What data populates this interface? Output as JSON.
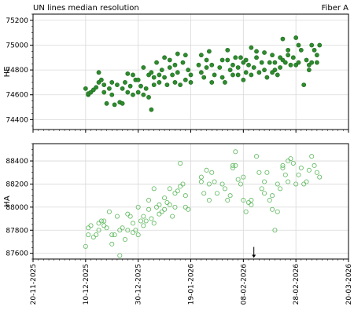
{
  "header": {
    "left_title": "UN lines median resolution",
    "right_title": "Fiber A"
  },
  "colors": {
    "he_fill": "#2e8b2e",
    "he_stroke": "#1f6a1f",
    "ha_stroke": "#5cb85c",
    "grid": "#d9d9d9",
    "axis": "#000000"
  },
  "chart_data": [
    {
      "type": "scatter",
      "ylabel": "HE",
      "ylim": [
        74320,
        75250
      ],
      "yticks": [
        74400,
        74600,
        74800,
        75000,
        75200
      ],
      "marker": "filled-circle",
      "grid": true,
      "x_dates": [
        "2025-11-20",
        "2025-12-10",
        "2025-12-30",
        "2026-01-19",
        "2026-02-08",
        "2026-02-28",
        "2026-03-20"
      ],
      "points": [
        [
          "2025-12-10",
          74650
        ],
        [
          "2025-12-11",
          74600
        ],
        [
          "2025-12-11",
          74610
        ],
        [
          "2025-12-12",
          74620
        ],
        [
          "2025-12-13",
          74640
        ],
        [
          "2025-12-14",
          74660
        ],
        [
          "2025-12-15",
          74700
        ],
        [
          "2025-12-15",
          74780
        ],
        [
          "2025-12-16",
          74720
        ],
        [
          "2025-12-17",
          74620
        ],
        [
          "2025-12-17",
          74680
        ],
        [
          "2025-12-18",
          74530
        ],
        [
          "2025-12-19",
          74650
        ],
        [
          "2025-12-20",
          74700
        ],
        [
          "2025-12-20",
          74600
        ],
        [
          "2025-12-21",
          74520
        ],
        [
          "2025-12-22",
          74680
        ],
        [
          "2025-12-23",
          74540
        ],
        [
          "2025-12-24",
          74530
        ],
        [
          "2025-12-24",
          74650
        ],
        [
          "2025-12-25",
          74700
        ],
        [
          "2025-12-26",
          74770
        ],
        [
          "2025-12-26",
          74620
        ],
        [
          "2025-12-27",
          74670
        ],
        [
          "2025-12-28",
          74760
        ],
        [
          "2025-12-28",
          74600
        ],
        [
          "2025-12-29",
          74720
        ],
        [
          "2025-12-30",
          74720
        ],
        [
          "2025-12-30",
          74620
        ],
        [
          "2025-12-31",
          74670
        ],
        [
          "2026-01-01",
          74820
        ],
        [
          "2026-01-01",
          74600
        ],
        [
          "2026-01-02",
          74650
        ],
        [
          "2026-01-03",
          74760
        ],
        [
          "2026-01-03",
          74580
        ],
        [
          "2026-01-04",
          74480
        ],
        [
          "2026-01-04",
          74780
        ],
        [
          "2026-01-05",
          74740
        ],
        [
          "2026-01-05",
          74680
        ],
        [
          "2026-01-06",
          74860
        ],
        [
          "2026-01-07",
          74760
        ],
        [
          "2026-01-07",
          74700
        ],
        [
          "2026-01-08",
          74800
        ],
        [
          "2026-01-09",
          74900
        ],
        [
          "2026-01-09",
          74740
        ],
        [
          "2026-01-10",
          74680
        ],
        [
          "2026-01-11",
          74820
        ],
        [
          "2026-01-11",
          74880
        ],
        [
          "2026-01-12",
          74760
        ],
        [
          "2026-01-13",
          74700
        ],
        [
          "2026-01-13",
          74840
        ],
        [
          "2026-01-14",
          74930
        ],
        [
          "2026-01-14",
          74780
        ],
        [
          "2026-01-15",
          74680
        ],
        [
          "2026-01-16",
          74860
        ],
        [
          "2026-01-17",
          74720
        ],
        [
          "2026-01-17",
          74920
        ],
        [
          "2026-01-18",
          74800
        ],
        [
          "2026-01-19",
          74760
        ],
        [
          "2026-01-19",
          74700
        ],
        [
          "2026-01-22",
          74840
        ],
        [
          "2026-01-23",
          74920
        ],
        [
          "2026-01-23",
          74780
        ],
        [
          "2026-01-24",
          74740
        ],
        [
          "2026-01-25",
          74880
        ],
        [
          "2026-01-25",
          74820
        ],
        [
          "2026-01-26",
          74950
        ],
        [
          "2026-01-27",
          74700
        ],
        [
          "2026-01-27",
          74840
        ],
        [
          "2026-01-28",
          74760
        ],
        [
          "2026-01-30",
          74820
        ],
        [
          "2026-01-31",
          74880
        ],
        [
          "2026-01-31",
          74740
        ],
        [
          "2026-02-01",
          74700
        ],
        [
          "2026-02-02",
          74880
        ],
        [
          "2026-02-02",
          74960
        ],
        [
          "2026-02-03",
          74800
        ],
        [
          "2026-02-04",
          74760
        ],
        [
          "2026-02-04",
          74840
        ],
        [
          "2026-02-05",
          74900
        ],
        [
          "2026-02-06",
          74760
        ],
        [
          "2026-02-06",
          74820
        ],
        [
          "2026-02-07",
          74900
        ],
        [
          "2026-02-08",
          74720
        ],
        [
          "2026-02-08",
          74860
        ],
        [
          "2026-02-09",
          74780
        ],
        [
          "2026-02-09",
          74880
        ],
        [
          "2026-02-10",
          74840
        ],
        [
          "2026-02-11",
          74760
        ],
        [
          "2026-02-11",
          74980
        ],
        [
          "2026-02-12",
          74820
        ],
        [
          "2026-02-13",
          74950
        ],
        [
          "2026-02-13",
          74900
        ],
        [
          "2026-02-14",
          74780
        ],
        [
          "2026-02-15",
          74860
        ],
        [
          "2026-02-16",
          74940
        ],
        [
          "2026-02-16",
          74800
        ],
        [
          "2026-02-17",
          74740
        ],
        [
          "2026-02-18",
          74860
        ],
        [
          "2026-02-19",
          74920
        ],
        [
          "2026-02-19",
          74780
        ],
        [
          "2026-02-20",
          74800
        ],
        [
          "2026-02-20",
          74860
        ],
        [
          "2026-02-21",
          74760
        ],
        [
          "2026-02-22",
          74900
        ],
        [
          "2026-02-22",
          74820
        ],
        [
          "2026-02-23",
          75050
        ],
        [
          "2026-02-23",
          74880
        ],
        [
          "2026-02-24",
          74860
        ],
        [
          "2026-02-25",
          74920
        ],
        [
          "2026-02-25",
          74960
        ],
        [
          "2026-02-26",
          74840
        ],
        [
          "2026-02-27",
          74900
        ],
        [
          "2026-02-28",
          75060
        ],
        [
          "2026-02-28",
          74840
        ],
        [
          "2026-03-01",
          74860
        ],
        [
          "2026-03-01",
          75000
        ],
        [
          "2026-03-02",
          74960
        ],
        [
          "2026-03-03",
          74680
        ],
        [
          "2026-03-04",
          74880
        ],
        [
          "2026-03-05",
          74800
        ],
        [
          "2026-03-05",
          74840
        ],
        [
          "2026-03-06",
          74860
        ],
        [
          "2026-03-06",
          75000
        ],
        [
          "2026-03-07",
          74960
        ],
        [
          "2026-03-08",
          74920
        ],
        [
          "2026-03-08",
          74860
        ],
        [
          "2026-03-09",
          75000
        ]
      ]
    },
    {
      "type": "scatter",
      "ylabel": "HA",
      "ylim": [
        87550,
        88550
      ],
      "yticks": [
        87600,
        87800,
        88000,
        88200,
        88400
      ],
      "marker": "open-circle",
      "grid": true,
      "x_dates": [
        "2025-11-20",
        "2025-12-10",
        "2025-12-30",
        "2026-01-19",
        "2026-02-08",
        "2026-02-28",
        "2026-03-20"
      ],
      "annotation": {
        "type": "arrow",
        "x": "2026-02-12",
        "y": 87560
      },
      "points": [
        [
          "2025-12-10",
          87660
        ],
        [
          "2025-12-11",
          87820
        ],
        [
          "2025-12-11",
          87760
        ],
        [
          "2025-12-12",
          87840
        ],
        [
          "2025-12-13",
          87740
        ],
        [
          "2025-12-14",
          87760
        ],
        [
          "2025-12-15",
          87860
        ],
        [
          "2025-12-15",
          87800
        ],
        [
          "2025-12-16",
          87880
        ],
        [
          "2025-12-17",
          87840
        ],
        [
          "2025-12-17",
          87880
        ],
        [
          "2025-12-18",
          87820
        ],
        [
          "2025-12-19",
          87960
        ],
        [
          "2025-12-20",
          87760
        ],
        [
          "2025-12-20",
          87680
        ],
        [
          "2025-12-21",
          87760
        ],
        [
          "2025-12-22",
          87920
        ],
        [
          "2025-12-23",
          87800
        ],
        [
          "2025-12-23",
          87580
        ],
        [
          "2025-12-24",
          87820
        ],
        [
          "2025-12-25",
          87720
        ],
        [
          "2025-12-26",
          87800
        ],
        [
          "2025-12-26",
          87940
        ],
        [
          "2025-12-27",
          87920
        ],
        [
          "2025-12-28",
          87780
        ],
        [
          "2025-12-28",
          87860
        ],
        [
          "2025-12-29",
          87800
        ],
        [
          "2025-12-30",
          87760
        ],
        [
          "2025-12-30",
          88000
        ],
        [
          "2025-12-31",
          87880
        ],
        [
          "2026-01-01",
          87920
        ],
        [
          "2026-01-01",
          87840
        ],
        [
          "2026-01-02",
          87880
        ],
        [
          "2026-01-03",
          87980
        ],
        [
          "2026-01-03",
          88060
        ],
        [
          "2026-01-04",
          87900
        ],
        [
          "2026-01-05",
          88160
        ],
        [
          "2026-01-05",
          87860
        ],
        [
          "2026-01-06",
          88000
        ],
        [
          "2026-01-07",
          88020
        ],
        [
          "2026-01-07",
          87940
        ],
        [
          "2026-01-08",
          87960
        ],
        [
          "2026-01-09",
          88080
        ],
        [
          "2026-01-09",
          87980
        ],
        [
          "2026-01-10",
          88040
        ],
        [
          "2026-01-11",
          88160
        ],
        [
          "2026-01-11",
          88020
        ],
        [
          "2026-01-12",
          87920
        ],
        [
          "2026-01-13",
          88120
        ],
        [
          "2026-01-13",
          88000
        ],
        [
          "2026-01-14",
          88140
        ],
        [
          "2026-01-15",
          88380
        ],
        [
          "2026-01-15",
          88180
        ],
        [
          "2026-01-16",
          88200
        ],
        [
          "2026-01-17",
          88100
        ],
        [
          "2026-01-17",
          88000
        ],
        [
          "2026-01-18",
          87980
        ],
        [
          "2026-01-23",
          88220
        ],
        [
          "2026-01-23",
          88260
        ],
        [
          "2026-01-24",
          88120
        ],
        [
          "2026-01-25",
          88320
        ],
        [
          "2026-01-26",
          88060
        ],
        [
          "2026-01-26",
          88200
        ],
        [
          "2026-01-27",
          88300
        ],
        [
          "2026-01-28",
          88220
        ],
        [
          "2026-01-29",
          88120
        ],
        [
          "2026-01-31",
          88200
        ],
        [
          "2026-02-01",
          88160
        ],
        [
          "2026-02-02",
          88060
        ],
        [
          "2026-02-03",
          88100
        ],
        [
          "2026-02-04",
          88360
        ],
        [
          "2026-02-04",
          88340
        ],
        [
          "2026-02-05",
          88480
        ],
        [
          "2026-02-05",
          88360
        ],
        [
          "2026-02-06",
          88240
        ],
        [
          "2026-02-07",
          88200
        ],
        [
          "2026-02-08",
          88260
        ],
        [
          "2026-02-08",
          88060
        ],
        [
          "2026-02-09",
          87960
        ],
        [
          "2026-02-10",
          88040
        ],
        [
          "2026-02-11",
          88020
        ],
        [
          "2026-02-11",
          88060
        ],
        [
          "2026-02-13",
          88440
        ],
        [
          "2026-02-14",
          88300
        ],
        [
          "2026-02-15",
          88160
        ],
        [
          "2026-02-16",
          88220
        ],
        [
          "2026-02-16",
          88120
        ],
        [
          "2026-02-17",
          88300
        ],
        [
          "2026-02-18",
          88060
        ],
        [
          "2026-02-19",
          88100
        ],
        [
          "2026-02-19",
          87980
        ],
        [
          "2026-02-20",
          87800
        ],
        [
          "2026-02-21",
          88200
        ],
        [
          "2026-02-21",
          87960
        ],
        [
          "2026-02-22",
          88160
        ],
        [
          "2026-02-23",
          88360
        ],
        [
          "2026-02-23",
          88340
        ],
        [
          "2026-02-24",
          88280
        ],
        [
          "2026-02-25",
          88400
        ],
        [
          "2026-02-25",
          88220
        ],
        [
          "2026-02-26",
          88420
        ],
        [
          "2026-02-27",
          88380
        ],
        [
          "2026-02-28",
          88200
        ],
        [
          "2026-03-01",
          88280
        ],
        [
          "2026-03-02",
          88340
        ],
        [
          "2026-03-03",
          88200
        ],
        [
          "2026-03-04",
          88220
        ],
        [
          "2026-03-05",
          88320
        ],
        [
          "2026-03-06",
          88440
        ],
        [
          "2026-03-07",
          88360
        ],
        [
          "2026-03-08",
          88300
        ],
        [
          "2026-03-09",
          88260
        ]
      ]
    }
  ],
  "x_axis": {
    "tick_labels": [
      "20-11-2025",
      "10-12-2025",
      "30-12-2025",
      "19-01-2026",
      "08-02-2026",
      "28-02-2026",
      "20-03-2026"
    ]
  }
}
